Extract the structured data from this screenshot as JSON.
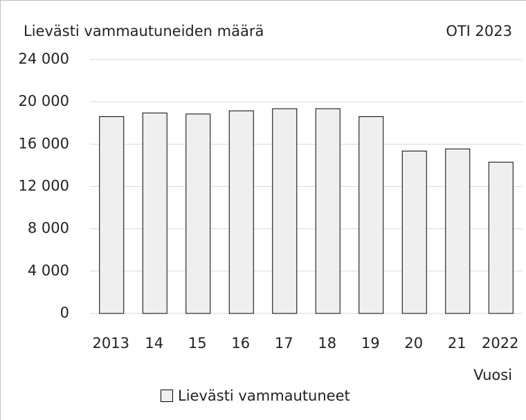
{
  "chart_data": {
    "type": "bar",
    "title": "Lievästi vammautuneiden määrä",
    "annotation": "OTI 2023",
    "x_label": "Vuosi",
    "categories": [
      "2013",
      "14",
      "15",
      "16",
      "17",
      "18",
      "19",
      "20",
      "21",
      "2022"
    ],
    "series": [
      {
        "name": "Lievästi vammautuneet",
        "color": "#efefef",
        "values": [
          18600,
          18950,
          18850,
          19150,
          19350,
          19350,
          18600,
          15350,
          15550,
          14300
        ]
      }
    ],
    "ylim": [
      0,
      24000
    ],
    "yticks": [
      {
        "value": 0,
        "label": "0"
      },
      {
        "value": 4000,
        "label": "4 000"
      },
      {
        "value": 8000,
        "label": "8 000"
      },
      {
        "value": 12000,
        "label": "12 000"
      },
      {
        "value": 16000,
        "label": "16 000"
      },
      {
        "value": 20000,
        "label": "20 000"
      },
      {
        "value": 24000,
        "label": "24 000"
      }
    ],
    "grid": true,
    "legend": "bottom"
  }
}
